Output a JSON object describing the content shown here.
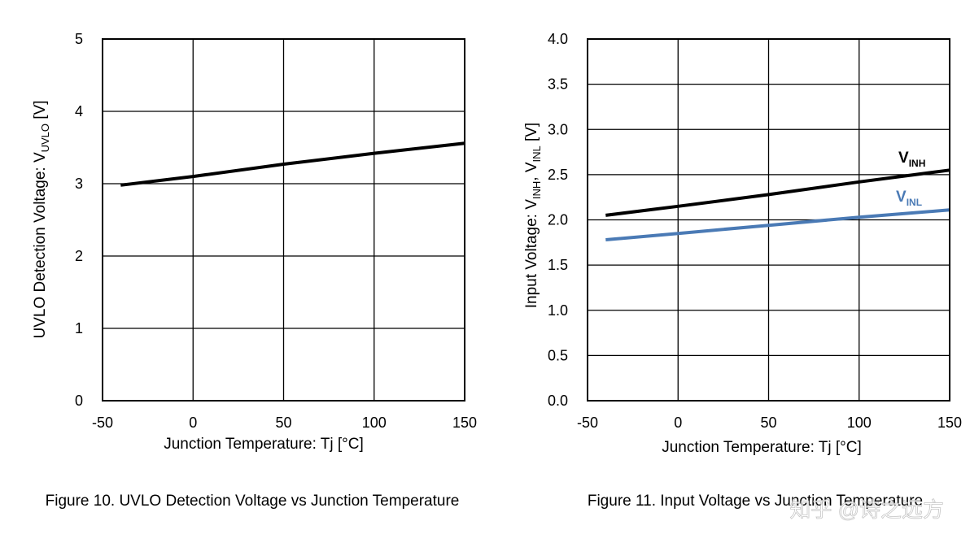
{
  "charts": [
    {
      "type": "line",
      "ylabel_main": "UVLO Detection Voltage: V",
      "ylabel_sub": "UVLO",
      "ylabel_unit": " [V]",
      "xlabel": "Junction Temperature: Tj [°C]",
      "caption": "Figure 10. UVLO Detection Voltage vs Junction Temperature",
      "x_ticks": [
        "-50",
        "0",
        "50",
        "100",
        "150"
      ],
      "y_ticks": [
        "0",
        "1",
        "2",
        "3",
        "4",
        "5"
      ]
    },
    {
      "type": "line",
      "ylabel_main": "Input Voltage: V",
      "ylabel_sub1": "INH",
      "ylabel_mid": ", V",
      "ylabel_sub2": "INL",
      "ylabel_unit": " [V]",
      "xlabel": "Junction Temperature: Tj [°C]",
      "caption": "Figure 11. Input Voltage vs Junction Temperature",
      "x_ticks": [
        "-50",
        "0",
        "50",
        "100",
        "150"
      ],
      "y_ticks": [
        "0.0",
        "0.5",
        "1.0",
        "1.5",
        "2.0",
        "2.5",
        "3.0",
        "3.5",
        "4.0"
      ],
      "series_labels": [
        {
          "main": "V",
          "sub": "INH"
        },
        {
          "main": "V",
          "sub": "INL"
        }
      ]
    }
  ],
  "chart_data": [
    {
      "type": "line",
      "title": "",
      "xlabel": "Junction Temperature: Tj [°C]",
      "ylabel": "UVLO Detection Voltage: VUVLO [V]",
      "xlim": [
        -50,
        150
      ],
      "ylim": [
        0,
        5
      ],
      "grid": true,
      "series": [
        {
          "x": [
            -40,
            0,
            50,
            100,
            150
          ],
          "y": [
            2.98,
            3.1,
            3.27,
            3.42,
            3.56
          ],
          "color": "#000000"
        }
      ]
    },
    {
      "type": "line",
      "title": "",
      "xlabel": "Junction Temperature: Tj [°C]",
      "ylabel": "Input Voltage: VINH, VINL [V]",
      "xlim": [
        -50,
        150
      ],
      "ylim": [
        0,
        4
      ],
      "grid": true,
      "series": [
        {
          "name": "VINH",
          "x": [
            -40,
            0,
            50,
            100,
            150
          ],
          "y": [
            2.05,
            2.15,
            2.28,
            2.42,
            2.55
          ],
          "color": "#000000"
        },
        {
          "name": "VINL",
          "x": [
            -40,
            0,
            50,
            100,
            150
          ],
          "y": [
            1.78,
            1.85,
            1.94,
            2.03,
            2.11
          ],
          "color": "#4a7ab5"
        }
      ]
    }
  ],
  "watermark": "知乎 @诗之远方"
}
